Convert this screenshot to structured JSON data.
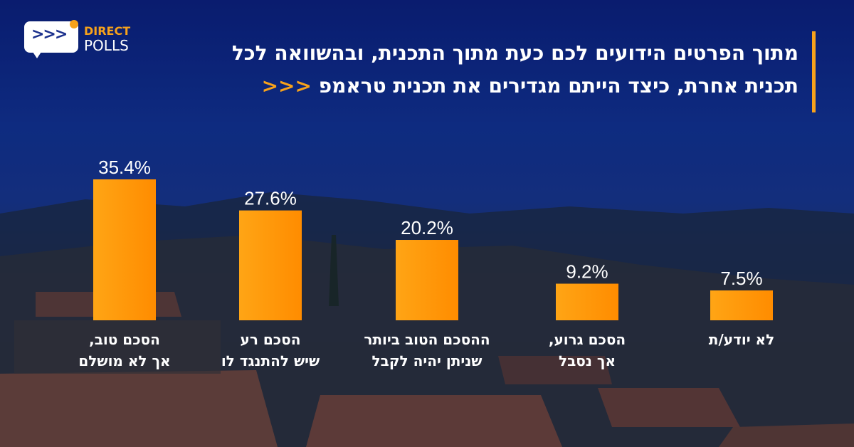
{
  "logo": {
    "line1": "DIRECT",
    "line2": "POLLS",
    "arrows": ">>>"
  },
  "title": {
    "line1": "מתוך הפרטים הידועים לכם כעת מתוך התכנית, ובהשוואה לכל",
    "line2": "תכנית אחרת, כיצד הייתם מגדירים את  תכנית טראמפ",
    "arrows": "<<<"
  },
  "colors": {
    "bar": "#ffa515",
    "bar_dark": "#ff8c00",
    "accent": "#f7a21b",
    "text": "#ffffff"
  },
  "chart_data": {
    "type": "bar",
    "title": "מתוך הפרטים הידועים לכם כעת מתוך התכנית, ובהשוואה לכל תכנית אחרת, כיצד הייתם מגדירים את  תכנית טראמפ",
    "categories": [
      [
        "הסכם טוב,",
        "אך לא מושלם"
      ],
      [
        "הסכם רע",
        "שיש להתנגד לו"
      ],
      [
        "ההסכם הטוב ביותר",
        "שניתן יהיה לקבל"
      ],
      [
        "הסכם גרוע,",
        "אך נסבל"
      ],
      [
        "לא יודע/ת"
      ]
    ],
    "values": [
      35.4,
      27.6,
      20.2,
      9.2,
      7.5
    ],
    "value_labels": [
      "35.4%",
      "27.6%",
      "20.2%",
      "9.2%",
      "7.5%"
    ],
    "xlabel": "",
    "ylabel": "",
    "ylim": [
      0,
      35.4
    ],
    "grid": false,
    "legend": "none"
  }
}
